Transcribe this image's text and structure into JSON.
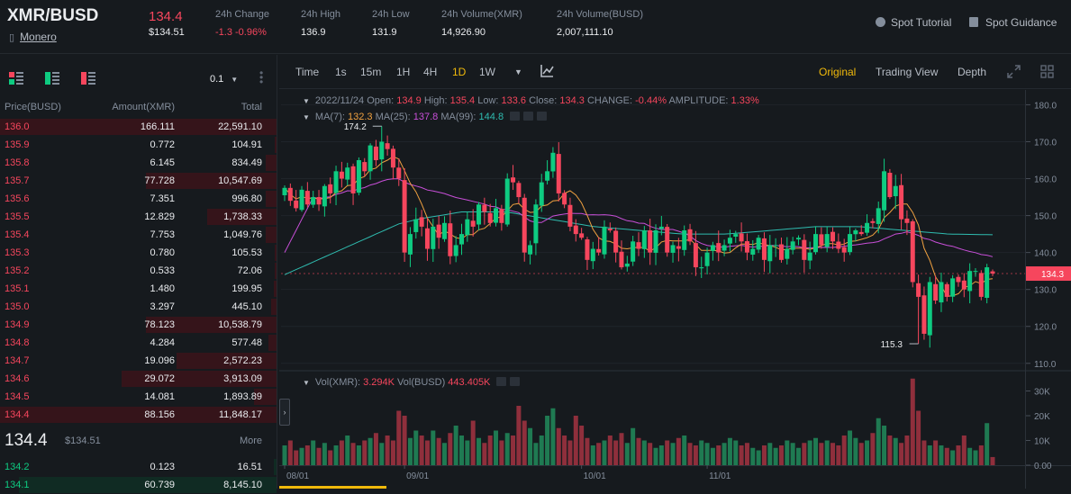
{
  "header": {
    "symbol": "XMR/BUSD",
    "coin_name": "Monero",
    "last_price": "134.4",
    "last_price_usd": "$134.51",
    "stats": [
      {
        "label": "24h Change",
        "value": "-1.3 -0.96%",
        "negative": true
      },
      {
        "label": "24h High",
        "value": "136.9",
        "negative": false
      },
      {
        "label": "24h Low",
        "value": "131.9",
        "negative": false
      },
      {
        "label": "24h Volume(XMR)",
        "value": "14,926.90",
        "negative": false
      },
      {
        "label": "24h Volume(BUSD)",
        "value": "2,007,111.10",
        "negative": false
      }
    ],
    "links": {
      "tutorial": "Spot Tutorial",
      "guidance": "Spot Guidance"
    }
  },
  "orderbook": {
    "tick_size": "0.1",
    "columns": {
      "price": "Price(BUSD)",
      "amount": "Amount(XMR)",
      "total": "Total"
    },
    "asks": [
      {
        "price": "136.0",
        "amount": "166.111",
        "total": "22,591.10",
        "depth": 1.0
      },
      {
        "price": "135.9",
        "amount": "0.772",
        "total": "104.91",
        "depth": 0.005
      },
      {
        "price": "135.8",
        "amount": "6.145",
        "total": "834.49",
        "depth": 0.04
      },
      {
        "price": "135.7",
        "amount": "77.728",
        "total": "10,547.69",
        "depth": 0.47
      },
      {
        "price": "135.6",
        "amount": "7.351",
        "total": "996.80",
        "depth": 0.04
      },
      {
        "price": "135.5",
        "amount": "12.829",
        "total": "1,738.33",
        "depth": 0.25
      },
      {
        "price": "135.4",
        "amount": "7.753",
        "total": "1,049.76",
        "depth": 0.04
      },
      {
        "price": "135.3",
        "amount": "0.780",
        "total": "105.53",
        "depth": 0.005
      },
      {
        "price": "135.2",
        "amount": "0.533",
        "total": "72.06",
        "depth": 0.005
      },
      {
        "price": "135.1",
        "amount": "1.480",
        "total": "199.95",
        "depth": 0.01
      },
      {
        "price": "135.0",
        "amount": "3.297",
        "total": "445.10",
        "depth": 0.02
      },
      {
        "price": "134.9",
        "amount": "78.123",
        "total": "10,538.79",
        "depth": 0.47
      },
      {
        "price": "134.8",
        "amount": "4.284",
        "total": "577.48",
        "depth": 0.03
      },
      {
        "price": "134.7",
        "amount": "19.096",
        "total": "2,572.23",
        "depth": 0.36
      },
      {
        "price": "134.6",
        "amount": "29.072",
        "total": "3,913.09",
        "depth": 0.56
      },
      {
        "price": "134.5",
        "amount": "14.081",
        "total": "1,893.89",
        "depth": 0.08
      },
      {
        "price": "134.4",
        "amount": "88.156",
        "total": "11,848.17",
        "depth": 1.0
      }
    ],
    "mid_price": "134.4",
    "mid_price_usd": "$134.51",
    "more_label": "More",
    "bids": [
      {
        "price": "134.2",
        "amount": "0.123",
        "total": "16.51",
        "depth": 0.01
      },
      {
        "price": "134.1",
        "amount": "60.739",
        "total": "8,145.10",
        "depth": 0.93
      }
    ]
  },
  "toolbar": {
    "intervals": [
      "Time",
      "1s",
      "15m",
      "1H",
      "4H",
      "1D",
      "1W"
    ],
    "active_interval": "1D",
    "views": [
      "Original",
      "Trading View",
      "Depth"
    ],
    "active_view": "Original"
  },
  "colors": {
    "up": "#0ecb81",
    "down": "#f6465d",
    "accent": "#f0b90b",
    "ma7": "#f0a140",
    "ma25": "#c84fd8",
    "ma99": "#2fbcb0"
  },
  "ohlc_legend": {
    "date": "2022/11/24",
    "open_label": "Open:",
    "open": "134.9",
    "high_label": "High:",
    "high": "135.4",
    "low_label": "Low:",
    "low": "133.6",
    "close_label": "Close:",
    "close": "134.3",
    "change_label": "CHANGE:",
    "change": "-0.44%",
    "amplitude_label": "AMPLITUDE:",
    "amplitude": "1.33%"
  },
  "ma_legend": {
    "ma7_label": "MA(7):",
    "ma7": "132.3",
    "ma25_label": "MA(25):",
    "ma25": "137.8",
    "ma99_label": "MA(99):",
    "ma99": "144.8"
  },
  "vol_legend": {
    "xmr_label": "Vol(XMR):",
    "xmr": "3.294K",
    "busd_label": "Vol(BUSD)",
    "busd": "443.405K"
  },
  "chart_data": {
    "type": "candlestick",
    "price_axis": {
      "ticks": [
        "180.0",
        "170.0",
        "160.0",
        "150.0",
        "140.0",
        "130.0",
        "120.0",
        "110.0"
      ],
      "range": [
        108,
        184
      ]
    },
    "volume_axis": {
      "ticks": [
        "30K",
        "20K",
        "10K",
        "0.00"
      ],
      "range": [
        0,
        36
      ]
    },
    "current_price_label": "134.3",
    "high_marker": "174.2",
    "low_marker": "115.3",
    "x_ticks": [
      "08/01",
      "09/01",
      "10/01",
      "11/01"
    ],
    "closes": [
      157.5,
      154,
      152,
      157,
      153,
      155,
      153,
      158,
      156,
      162,
      160,
      163,
      156,
      165,
      162,
      169,
      165,
      170,
      168,
      163,
      160,
      140,
      145,
      149,
      147,
      141,
      147,
      144,
      148,
      139,
      142,
      145,
      149,
      147,
      153,
      151,
      148,
      152,
      148,
      160,
      159,
      155,
      140,
      142,
      153,
      159,
      162,
      167,
      156,
      153,
      147,
      145,
      144,
      138,
      141,
      140,
      147,
      146,
      140,
      136,
      137,
      143,
      141,
      146,
      140,
      146,
      147,
      140,
      142,
      141,
      146,
      143,
      136,
      136,
      140,
      142,
      140,
      142,
      144,
      145,
      143,
      140,
      141,
      144,
      138,
      142,
      142,
      138,
      141,
      143,
      144,
      138,
      140,
      145,
      142,
      145,
      143,
      141,
      140,
      145,
      146,
      145,
      148,
      148,
      152,
      162,
      155,
      158,
      149,
      148,
      132,
      128,
      118,
      132,
      127,
      132,
      128,
      133,
      132,
      130,
      135,
      135,
      128,
      136,
      134.3
    ],
    "volumes": [
      8,
      10,
      6,
      7,
      8,
      10,
      7,
      9,
      6,
      8,
      10,
      12,
      9,
      8,
      10,
      11,
      13,
      9,
      12,
      10,
      22,
      20,
      11,
      14,
      12,
      10,
      14,
      11,
      9,
      13,
      16,
      12,
      10,
      18,
      11,
      9,
      12,
      14,
      10,
      13,
      12,
      24,
      18,
      15,
      9,
      12,
      20,
      23,
      15,
      12,
      10,
      20,
      16,
      11,
      8,
      9,
      10,
      12,
      10,
      13,
      9,
      15,
      11,
      10,
      9,
      7,
      8,
      10,
      9,
      11,
      12,
      9,
      8,
      10,
      9,
      7,
      8,
      9,
      11,
      10,
      8,
      9,
      7,
      6,
      8,
      9,
      7,
      8,
      10,
      9,
      7,
      9,
      10,
      11,
      9,
      10,
      9,
      8,
      12,
      14,
      11,
      9,
      10,
      13,
      19,
      16,
      12,
      11,
      9,
      12,
      35,
      22,
      10,
      8,
      10,
      8,
      7,
      6,
      8,
      12,
      7,
      6,
      8,
      17,
      3.3
    ]
  }
}
